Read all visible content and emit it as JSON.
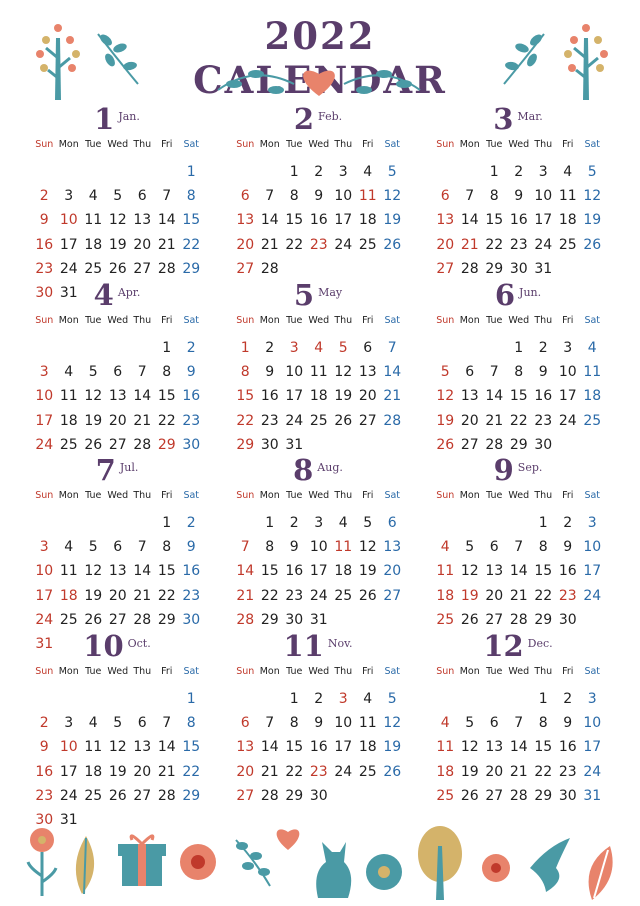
{
  "title": "2022 CALENDAR",
  "weekdays": [
    "Sun",
    "Mon",
    "Tue",
    "Wed",
    "Thu",
    "Fri",
    "Sat"
  ],
  "months": [
    {
      "num": "1",
      "abbr": "Jan.",
      "weeks": [
        [
          "",
          "",
          "",
          "",
          "",
          "",
          "1"
        ],
        [
          "2",
          "3",
          "4",
          "5",
          "6",
          "7",
          "8"
        ],
        [
          "9",
          "10",
          "11",
          "12",
          "13",
          "14",
          "15"
        ],
        [
          "16",
          "17",
          "18",
          "19",
          "20",
          "21",
          "22"
        ],
        [
          "23",
          "24",
          "25",
          "26",
          "27",
          "28",
          "29"
        ],
        [
          "30",
          "31",
          "",
          "",
          "",
          "",
          ""
        ]
      ],
      "holidays": [
        "10"
      ]
    },
    {
      "num": "2",
      "abbr": "Feb.",
      "weeks": [
        [
          "",
          "",
          "1",
          "2",
          "3",
          "4",
          "5"
        ],
        [
          "6",
          "7",
          "8",
          "9",
          "10",
          "11",
          "12"
        ],
        [
          "13",
          "14",
          "15",
          "16",
          "17",
          "18",
          "19"
        ],
        [
          "20",
          "21",
          "22",
          "23",
          "24",
          "25",
          "26"
        ],
        [
          "27",
          "28",
          "",
          "",
          "",
          "",
          ""
        ]
      ],
      "holidays": [
        "11",
        "23"
      ]
    },
    {
      "num": "3",
      "abbr": "Mar.",
      "weeks": [
        [
          "",
          "",
          "1",
          "2",
          "3",
          "4",
          "5"
        ],
        [
          "6",
          "7",
          "8",
          "9",
          "10",
          "11",
          "12"
        ],
        [
          "13",
          "14",
          "15",
          "16",
          "17",
          "18",
          "19"
        ],
        [
          "20",
          "21",
          "22",
          "23",
          "24",
          "25",
          "26"
        ],
        [
          "27",
          "28",
          "29",
          "30",
          "31",
          "",
          ""
        ]
      ],
      "holidays": [
        "21"
      ]
    },
    {
      "num": "4",
      "abbr": "Apr.",
      "weeks": [
        [
          "",
          "",
          "",
          "",
          "",
          "1",
          "2"
        ],
        [
          "3",
          "4",
          "5",
          "6",
          "7",
          "8",
          "9"
        ],
        [
          "10",
          "11",
          "12",
          "13",
          "14",
          "15",
          "16"
        ],
        [
          "17",
          "18",
          "19",
          "20",
          "21",
          "22",
          "23"
        ],
        [
          "24",
          "25",
          "26",
          "27",
          "28",
          "29",
          "30"
        ]
      ],
      "holidays": [
        "29"
      ]
    },
    {
      "num": "5",
      "abbr": "May",
      "weeks": [
        [
          "1",
          "2",
          "3",
          "4",
          "5",
          "6",
          "7"
        ],
        [
          "8",
          "9",
          "10",
          "11",
          "12",
          "13",
          "14"
        ],
        [
          "15",
          "16",
          "17",
          "18",
          "19",
          "20",
          "21"
        ],
        [
          "22",
          "23",
          "24",
          "25",
          "26",
          "27",
          "28"
        ],
        [
          "29",
          "30",
          "31",
          "",
          "",
          "",
          ""
        ]
      ],
      "holidays": [
        "3",
        "4",
        "5"
      ]
    },
    {
      "num": "6",
      "abbr": "Jun.",
      "weeks": [
        [
          "",
          "",
          "",
          "1",
          "2",
          "3",
          "4"
        ],
        [
          "5",
          "6",
          "7",
          "8",
          "9",
          "10",
          "11"
        ],
        [
          "12",
          "13",
          "14",
          "15",
          "16",
          "17",
          "18"
        ],
        [
          "19",
          "20",
          "21",
          "22",
          "23",
          "24",
          "25"
        ],
        [
          "26",
          "27",
          "28",
          "29",
          "30",
          "",
          ""
        ]
      ],
      "holidays": []
    },
    {
      "num": "7",
      "abbr": "Jul.",
      "weeks": [
        [
          "",
          "",
          "",
          "",
          "",
          "1",
          "2"
        ],
        [
          "3",
          "4",
          "5",
          "6",
          "7",
          "8",
          "9"
        ],
        [
          "10",
          "11",
          "12",
          "13",
          "14",
          "15",
          "16"
        ],
        [
          "17",
          "18",
          "19",
          "20",
          "21",
          "22",
          "23"
        ],
        [
          "24",
          "25",
          "26",
          "27",
          "28",
          "29",
          "30"
        ],
        [
          "31",
          "",
          "",
          "",
          "",
          "",
          ""
        ]
      ],
      "holidays": [
        "18"
      ]
    },
    {
      "num": "8",
      "abbr": "Aug.",
      "weeks": [
        [
          "",
          "1",
          "2",
          "3",
          "4",
          "5",
          "6"
        ],
        [
          "7",
          "8",
          "9",
          "10",
          "11",
          "12",
          "13"
        ],
        [
          "14",
          "15",
          "16",
          "17",
          "18",
          "19",
          "20"
        ],
        [
          "21",
          "22",
          "23",
          "24",
          "25",
          "26",
          "27"
        ],
        [
          "28",
          "29",
          "30",
          "31",
          "",
          "",
          ""
        ]
      ],
      "holidays": [
        "11"
      ]
    },
    {
      "num": "9",
      "abbr": "Sep.",
      "weeks": [
        [
          "",
          "",
          "",
          "",
          "1",
          "2",
          "3"
        ],
        [
          "4",
          "5",
          "6",
          "7",
          "8",
          "9",
          "10"
        ],
        [
          "11",
          "12",
          "13",
          "14",
          "15",
          "16",
          "17"
        ],
        [
          "18",
          "19",
          "20",
          "21",
          "22",
          "23",
          "24"
        ],
        [
          "25",
          "26",
          "27",
          "28",
          "29",
          "30",
          ""
        ]
      ],
      "holidays": [
        "19",
        "23"
      ]
    },
    {
      "num": "10",
      "abbr": "Oct.",
      "weeks": [
        [
          "",
          "",
          "",
          "",
          "",
          "",
          "1"
        ],
        [
          "2",
          "3",
          "4",
          "5",
          "6",
          "7",
          "8"
        ],
        [
          "9",
          "10",
          "11",
          "12",
          "13",
          "14",
          "15"
        ],
        [
          "16",
          "17",
          "18",
          "19",
          "20",
          "21",
          "22"
        ],
        [
          "23",
          "24",
          "25",
          "26",
          "27",
          "28",
          "29"
        ],
        [
          "30",
          "31",
          "",
          "",
          "",
          "",
          ""
        ]
      ],
      "holidays": [
        "10"
      ]
    },
    {
      "num": "11",
      "abbr": "Nov.",
      "weeks": [
        [
          "",
          "",
          "1",
          "2",
          "3",
          "4",
          "5"
        ],
        [
          "6",
          "7",
          "8",
          "9",
          "10",
          "11",
          "12"
        ],
        [
          "13",
          "14",
          "15",
          "16",
          "17",
          "18",
          "19"
        ],
        [
          "20",
          "21",
          "22",
          "23",
          "24",
          "25",
          "26"
        ],
        [
          "27",
          "28",
          "29",
          "30",
          "",
          "",
          ""
        ]
      ],
      "holidays": [
        "3",
        "23"
      ]
    },
    {
      "num": "12",
      "abbr": "Dec.",
      "weeks": [
        [
          "",
          "",
          "",
          "",
          "1",
          "2",
          "3"
        ],
        [
          "4",
          "5",
          "6",
          "7",
          "8",
          "9",
          "10"
        ],
        [
          "11",
          "12",
          "13",
          "14",
          "15",
          "16",
          "17"
        ],
        [
          "18",
          "19",
          "20",
          "21",
          "22",
          "23",
          "24"
        ],
        [
          "25",
          "26",
          "27",
          "28",
          "29",
          "30",
          "31"
        ]
      ],
      "holidays": []
    }
  ],
  "colors": {
    "title": "#5a3d6b",
    "sunday": "#c0392b",
    "saturday": "#2a6aa8",
    "holiday": "#c0392b",
    "teal": "#4a9aa5",
    "coral": "#e8836b",
    "gold": "#d4b36a"
  },
  "decorations": [
    "tree-icon",
    "branch-icon",
    "heart-icon",
    "flower-icon",
    "leaf-icon",
    "gift-icon",
    "cat-icon",
    "bird-icon"
  ]
}
